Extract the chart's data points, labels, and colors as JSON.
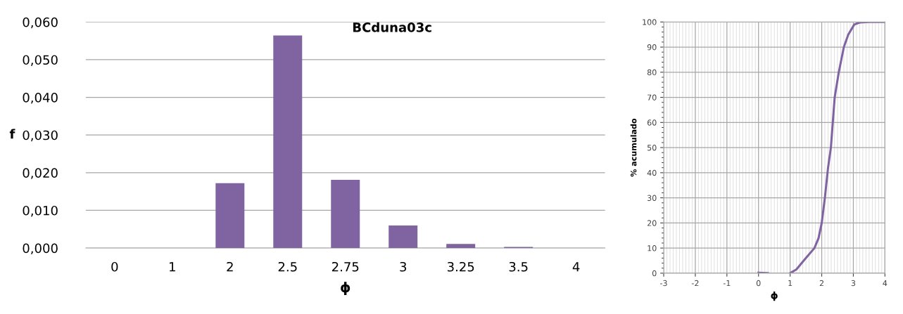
{
  "chart_data": [
    {
      "type": "bar",
      "title": "BCduna03c",
      "xlabel": "ϕ",
      "ylabel": "f",
      "categories": [
        "0",
        "1",
        "2",
        "2.5",
        "2.75",
        "3",
        "3.25",
        "3.5",
        "4"
      ],
      "series": [
        {
          "color": "#8064a2",
          "values": [
            0,
            0,
            0.0172,
            0.0564,
            0.0181,
            0.006,
            0.0011,
            0.0003,
            0
          ]
        }
      ],
      "ylim": [
        0,
        0.06
      ],
      "yticks": [
        {
          "value": 0,
          "label": "0,000"
        },
        {
          "value": 0.01,
          "label": "0,010"
        },
        {
          "value": 0.02,
          "label": "0,020"
        },
        {
          "value": 0.03,
          "label": "0,030"
        },
        {
          "value": 0.04,
          "label": "0,040"
        },
        {
          "value": 0.05,
          "label": "0,050"
        },
        {
          "value": 0.06,
          "label": "0,060"
        }
      ],
      "grid": "y"
    },
    {
      "type": "line",
      "xlabel": "ϕ",
      "ylabel": "% acumulado",
      "series": [
        {
          "color": "#8064a2",
          "x": [
            0,
            0.3,
            null,
            1,
            1.2,
            1.43,
            1.6,
            1.77,
            1.9,
            2.0,
            2.1,
            2.2,
            2.29,
            2.35,
            2.41,
            2.54,
            2.7,
            2.84,
            3.03,
            3.2,
            3.5,
            4
          ],
          "values": [
            0.2,
            0,
            null,
            0,
            1.5,
            5,
            7.5,
            10,
            14,
            20,
            30,
            42,
            50,
            60,
            70,
            80,
            90,
            95,
            99,
            99.8,
            100,
            100
          ]
        }
      ],
      "xlim": [
        -3,
        4
      ],
      "xticks": [
        -3,
        -2,
        -1,
        0,
        1,
        2,
        3,
        4
      ],
      "ylim": [
        0,
        100
      ],
      "yticks": [
        0,
        10,
        20,
        30,
        40,
        50,
        60,
        70,
        80,
        90,
        100
      ],
      "grid": true,
      "marker": "none",
      "line_style": "solid"
    }
  ]
}
